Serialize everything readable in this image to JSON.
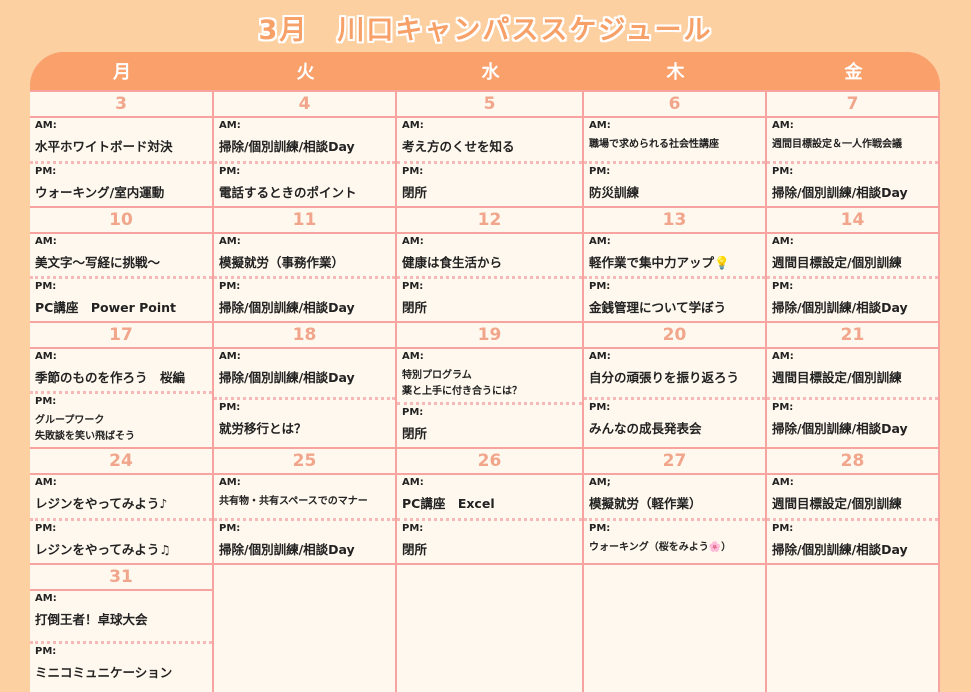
{
  "title": "3月　川口キャンパススケジュール",
  "weekdays": [
    "月",
    "火",
    "水",
    "木",
    "金"
  ],
  "am_label": "AM:",
  "pm_label": "PM:",
  "weeks": [
    [
      {
        "date": "3",
        "am": "水平ホワイトボード対決",
        "pm": "ウォーキング/室内運動"
      },
      {
        "date": "4",
        "am": "掃除/個別訓練/相談Day",
        "pm": "電話するときのポイント"
      },
      {
        "date": "5",
        "am": "考え方のくせを知る",
        "pm": "閉所"
      },
      {
        "date": "6",
        "am": "職場で求められる社会性講座",
        "pm": "防災訓練"
      },
      {
        "date": "7",
        "am": "週間目標設定＆一人作戦会議",
        "pm": "掃除/個別訓練/相談Day"
      }
    ],
    [
      {
        "date": "10",
        "am": "美文字～写経に挑戦～",
        "pm": "PC講座　Power Point"
      },
      {
        "date": "11",
        "am": "模擬就労（事務作業）",
        "pm": "掃除/個別訓練/相談Day"
      },
      {
        "date": "12",
        "am": "健康は食生活から",
        "pm": "閉所"
      },
      {
        "date": "13",
        "am": "軽作業で集中力アップ💡",
        "pm": "金銭管理について学ぼう"
      },
      {
        "date": "14",
        "am": "週間目標設定/個別訓練",
        "pm": "掃除/個別訓練/相談Day"
      }
    ],
    [
      {
        "date": "17",
        "am": "季節のものを作ろう　桜編",
        "pm": "グループワーク\n失敗談を笑い飛ばそう"
      },
      {
        "date": "18",
        "am": "掃除/個別訓練/相談Day",
        "pm": "就労移行とは？"
      },
      {
        "date": "19",
        "am": "特別プログラム\n薬と上手に付き合うには？",
        "pm": "閉所"
      },
      {
        "date": "20",
        "am": "自分の頑張りを振り返ろう",
        "pm": "みんなの成長発表会"
      },
      {
        "date": "21",
        "am": "週間目標設定/個別訓練",
        "pm": "掃除/個別訓練/相談Day"
      }
    ],
    [
      {
        "date": "24",
        "am": "レジンをやってみよう♪",
        "pm": "レジンをやってみよう♫"
      },
      {
        "date": "25",
        "am": "共有物・共有スペースでのマナー",
        "pm": "掃除/個別訓練/相談Day"
      },
      {
        "date": "26",
        "am": "PC講座　Excel",
        "pm": "閉所"
      },
      {
        "date": "27",
        "am_label": "AM;",
        "am": "模擬就労（軽作業）",
        "pm": "ウォーキング（桜をみよう🌸）"
      },
      {
        "date": "28",
        "am": "週間目標設定/個別訓練",
        "pm": "掃除/個別訓練/相談Day"
      }
    ],
    [
      {
        "date": "31",
        "am": "打倒王者！卓球大会",
        "pm": "ミニコミュニケーション"
      },
      null,
      null,
      null,
      null
    ]
  ],
  "colors": {
    "background": "#fdd0a2",
    "header": "#f9a06b",
    "cell": "#fff8ee",
    "border": "#f7a3a0",
    "date": "#f1a68c"
  }
}
